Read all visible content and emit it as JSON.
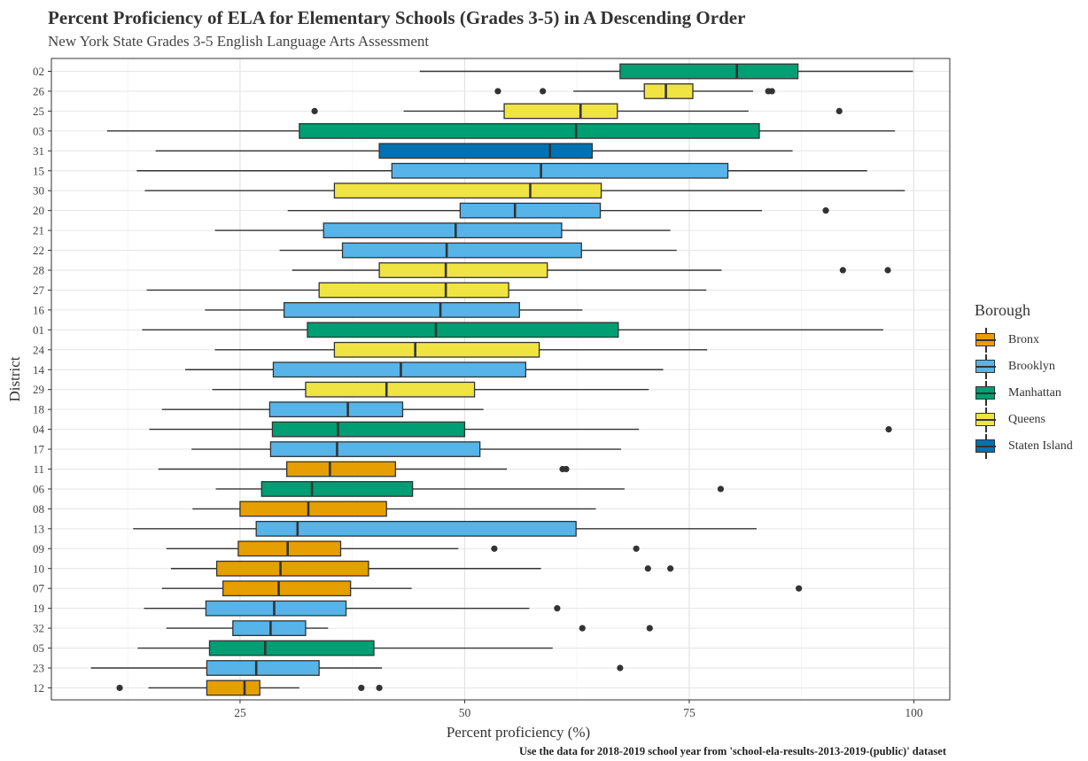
{
  "chart_data": {
    "type": "boxplot",
    "orientation": "horizontal",
    "title": "Percent Proficiency of ELA for Elementary Schools (Grades 3-5) in A Descending Order",
    "subtitle": "New York State Grades 3-5 English Language Arts Assessment",
    "caption": "Use the data for 2018-2019 school year from 'school-ela-results-2013-2019-(public)' dataset",
    "xlabel": "Percent proficiency (%)",
    "ylabel": "District",
    "xlim": [
      4,
      104
    ],
    "xticks": [
      25,
      50,
      75,
      100
    ],
    "grid": true,
    "legend": {
      "title": "Borough",
      "placement": "right",
      "entries": [
        {
          "name": "Bronx",
          "color": "#E69F00"
        },
        {
          "name": "Brooklyn",
          "color": "#56B4E9"
        },
        {
          "name": "Manhattan",
          "color": "#009E73"
        },
        {
          "name": "Queens",
          "color": "#F0E442"
        },
        {
          "name": "Staten Island",
          "color": "#0072B2"
        }
      ]
    },
    "series": [
      {
        "district": "02",
        "borough": "Manhattan",
        "whisker_low": 45.0,
        "q1": 67.3,
        "median": 80.3,
        "q3": 87.1,
        "whisker_high": 99.9,
        "outliers": []
      },
      {
        "district": "26",
        "borough": "Queens",
        "whisker_low": 62.1,
        "q1": 70.0,
        "median": 72.4,
        "q3": 75.4,
        "whisker_high": 82.1,
        "outliers": [
          53.7,
          58.7,
          83.8,
          84.2
        ]
      },
      {
        "district": "25",
        "borough": "Queens",
        "whisker_low": 43.2,
        "q1": 54.4,
        "median": 62.9,
        "q3": 67.0,
        "whisker_high": 81.6,
        "outliers": [
          33.3,
          91.7
        ]
      },
      {
        "district": "03",
        "borough": "Manhattan",
        "whisker_low": 10.2,
        "q1": 31.6,
        "median": 62.4,
        "q3": 82.8,
        "whisker_high": 97.9,
        "outliers": []
      },
      {
        "district": "31",
        "borough": "Staten Island",
        "whisker_low": 15.6,
        "q1": 40.5,
        "median": 59.5,
        "q3": 64.2,
        "whisker_high": 86.5,
        "outliers": []
      },
      {
        "district": "15",
        "borough": "Brooklyn",
        "whisker_low": 13.5,
        "q1": 41.9,
        "median": 58.5,
        "q3": 79.3,
        "whisker_high": 94.8,
        "outliers": []
      },
      {
        "district": "30",
        "borough": "Queens",
        "whisker_low": 14.4,
        "q1": 35.5,
        "median": 57.3,
        "q3": 65.2,
        "whisker_high": 99.0,
        "outliers": []
      },
      {
        "district": "20",
        "borough": "Brooklyn",
        "whisker_low": 30.3,
        "q1": 49.5,
        "median": 55.6,
        "q3": 65.1,
        "whisker_high": 83.1,
        "outliers": [
          90.2
        ]
      },
      {
        "district": "21",
        "borough": "Brooklyn",
        "whisker_low": 22.2,
        "q1": 34.3,
        "median": 49.0,
        "q3": 60.8,
        "whisker_high": 72.9,
        "outliers": []
      },
      {
        "district": "22",
        "borough": "Brooklyn",
        "whisker_low": 29.4,
        "q1": 36.4,
        "median": 48.0,
        "q3": 63.0,
        "whisker_high": 73.6,
        "outliers": []
      },
      {
        "district": "28",
        "borough": "Queens",
        "whisker_low": 30.8,
        "q1": 40.5,
        "median": 47.9,
        "q3": 59.2,
        "whisker_high": 78.6,
        "outliers": [
          92.1,
          97.1
        ]
      },
      {
        "district": "27",
        "borough": "Queens",
        "whisker_low": 14.6,
        "q1": 33.8,
        "median": 47.9,
        "q3": 54.9,
        "whisker_high": 76.9,
        "outliers": []
      },
      {
        "district": "16",
        "borough": "Brooklyn",
        "whisker_low": 21.1,
        "q1": 29.9,
        "median": 47.3,
        "q3": 56.1,
        "whisker_high": 63.1,
        "outliers": []
      },
      {
        "district": "01",
        "borough": "Manhattan",
        "whisker_low": 14.1,
        "q1": 32.5,
        "median": 46.8,
        "q3": 67.1,
        "whisker_high": 96.6,
        "outliers": []
      },
      {
        "district": "24",
        "borough": "Queens",
        "whisker_low": 22.2,
        "q1": 35.5,
        "median": 44.5,
        "q3": 58.3,
        "whisker_high": 77.0,
        "outliers": []
      },
      {
        "district": "14",
        "borough": "Brooklyn",
        "whisker_low": 18.9,
        "q1": 28.7,
        "median": 42.9,
        "q3": 56.8,
        "whisker_high": 72.1,
        "outliers": []
      },
      {
        "district": "29",
        "borough": "Queens",
        "whisker_low": 21.9,
        "q1": 32.3,
        "median": 41.3,
        "q3": 51.1,
        "whisker_high": 70.5,
        "outliers": []
      },
      {
        "district": "18",
        "borough": "Brooklyn",
        "whisker_low": 16.3,
        "q1": 28.3,
        "median": 37.0,
        "q3": 43.1,
        "whisker_high": 52.1,
        "outliers": []
      },
      {
        "district": "04",
        "borough": "Manhattan",
        "whisker_low": 14.9,
        "q1": 28.6,
        "median": 35.9,
        "q3": 50.0,
        "whisker_high": 69.4,
        "outliers": [
          97.2
        ]
      },
      {
        "district": "17",
        "borough": "Brooklyn",
        "whisker_low": 19.6,
        "q1": 28.4,
        "median": 35.8,
        "q3": 51.7,
        "whisker_high": 67.4,
        "outliers": []
      },
      {
        "district": "11",
        "borough": "Bronx",
        "whisker_low": 15.9,
        "q1": 30.2,
        "median": 35.0,
        "q3": 42.3,
        "whisker_high": 54.7,
        "outliers": [
          60.9,
          61.3
        ]
      },
      {
        "district": "06",
        "borough": "Manhattan",
        "whisker_low": 22.3,
        "q1": 27.4,
        "median": 33.0,
        "q3": 44.2,
        "whisker_high": 67.8,
        "outliers": [
          78.5
        ]
      },
      {
        "district": "08",
        "borough": "Bronx",
        "whisker_low": 19.7,
        "q1": 25.0,
        "median": 32.6,
        "q3": 41.3,
        "whisker_high": 64.6,
        "outliers": []
      },
      {
        "district": "13",
        "borough": "Brooklyn",
        "whisker_low": 13.1,
        "q1": 26.8,
        "median": 31.4,
        "q3": 62.4,
        "whisker_high": 82.5,
        "outliers": []
      },
      {
        "district": "09",
        "borough": "Bronx",
        "whisker_low": 16.8,
        "q1": 24.8,
        "median": 30.3,
        "q3": 36.2,
        "whisker_high": 49.3,
        "outliers": [
          53.3,
          69.1
        ]
      },
      {
        "district": "10",
        "borough": "Bronx",
        "whisker_low": 17.3,
        "q1": 22.4,
        "median": 29.5,
        "q3": 39.3,
        "whisker_high": 58.5,
        "outliers": [
          70.4,
          72.9
        ]
      },
      {
        "district": "07",
        "borough": "Bronx",
        "whisker_low": 16.3,
        "q1": 23.1,
        "median": 29.3,
        "q3": 37.3,
        "whisker_high": 44.1,
        "outliers": [
          87.2
        ]
      },
      {
        "district": "19",
        "borough": "Brooklyn",
        "whisker_low": 14.3,
        "q1": 21.2,
        "median": 28.8,
        "q3": 36.8,
        "whisker_high": 57.2,
        "outliers": [
          60.3
        ]
      },
      {
        "district": "32",
        "borough": "Brooklyn",
        "whisker_low": 16.8,
        "q1": 24.2,
        "median": 28.4,
        "q3": 32.3,
        "whisker_high": 34.8,
        "outliers": [
          63.1,
          70.6
        ]
      },
      {
        "district": "05",
        "borough": "Manhattan",
        "whisker_low": 13.6,
        "q1": 21.6,
        "median": 27.8,
        "q3": 39.9,
        "whisker_high": 59.8,
        "outliers": []
      },
      {
        "district": "23",
        "borough": "Brooklyn",
        "whisker_low": 8.4,
        "q1": 21.3,
        "median": 26.8,
        "q3": 33.8,
        "whisker_high": 40.8,
        "outliers": [
          67.3
        ]
      },
      {
        "district": "12",
        "borough": "Bronx",
        "whisker_low": 14.8,
        "q1": 21.3,
        "median": 25.5,
        "q3": 27.2,
        "whisker_high": 31.6,
        "outliers": [
          11.6,
          38.5,
          40.5
        ]
      }
    ]
  }
}
